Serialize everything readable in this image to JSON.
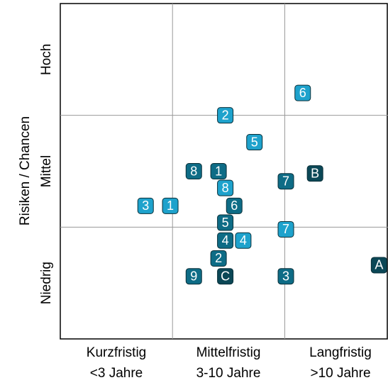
{
  "chart_data": {
    "type": "scatter",
    "y_label": "Risiken / Chancen",
    "x_categories": [
      [
        "Kurzfristig",
        "<3 Jahre"
      ],
      [
        "Mittelfristig",
        "3-10 Jahre"
      ],
      [
        "Langfristig",
        ">10 Jahre"
      ]
    ],
    "y_categories": [
      "Niedrig",
      "Mittel",
      "Hoch"
    ],
    "xlim": [
      0,
      2.92
    ],
    "ylim": [
      0,
      3
    ],
    "xticks": [
      1,
      2
    ],
    "yticks": [
      1,
      2
    ],
    "grid": true,
    "series": [
      {
        "color": "#1ea2cc",
        "labels": [
          "6",
          "2",
          "5",
          "8",
          "3",
          "1",
          "7",
          "4"
        ],
        "x": [
          2.16,
          1.47,
          1.73,
          1.47,
          0.76,
          0.98,
          2.01,
          1.63
        ],
        "y": [
          2.2,
          2.0,
          1.76,
          1.35,
          1.19,
          1.19,
          0.98,
          0.88
        ]
      },
      {
        "color": "#0e6c86",
        "labels": [
          "8",
          "1",
          "7",
          "6",
          "5",
          "4",
          "2",
          "9",
          "3"
        ],
        "x": [
          1.19,
          1.41,
          2.01,
          1.55,
          1.47,
          1.47,
          1.41,
          1.19,
          2.01
        ],
        "y": [
          1.5,
          1.5,
          1.41,
          1.19,
          1.04,
          0.88,
          0.72,
          0.56,
          0.56
        ]
      },
      {
        "color": "#0b4756",
        "labels": [
          "B",
          "A",
          "C"
        ],
        "x": [
          2.27,
          2.84,
          1.47
        ],
        "y": [
          1.48,
          0.66,
          0.56
        ]
      }
    ]
  }
}
